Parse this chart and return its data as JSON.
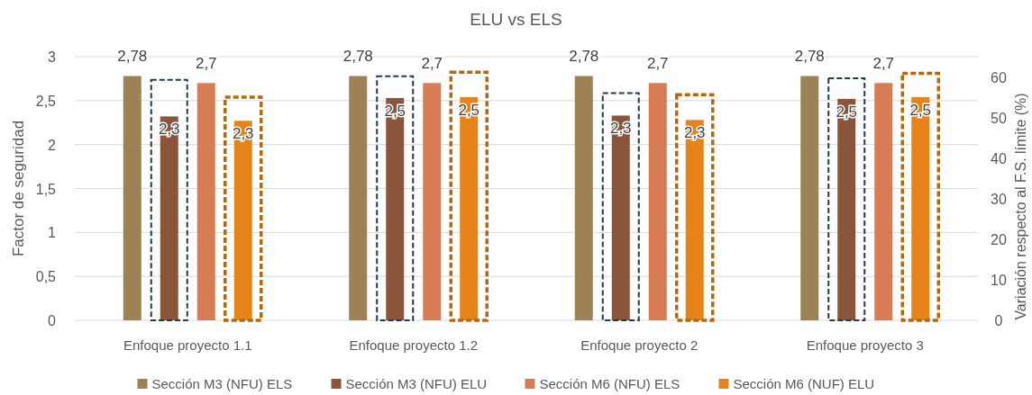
{
  "chart_data": {
    "type": "bar",
    "title": "ELU vs ELS",
    "ylabel": "Factor de seguridad",
    "y2label": "Variación respecto al F.S. límite (%)",
    "categories": [
      "Enfoque proyecto 1.1",
      "Enfoque proyecto 1.2",
      "Enfoque proyecto 2",
      "Enfoque proyecto 3"
    ],
    "series": [
      {
        "name": "Sección M3 (NFU) ELS",
        "color": "#9c8255",
        "values": [
          2.78,
          2.78,
          2.78,
          2.78
        ],
        "value_labels": [
          "2,78",
          "2,78",
          "2,78",
          "2,78"
        ]
      },
      {
        "name": "Sección M3 (NFU) ELU",
        "color": "#8b553c",
        "values": [
          2.32,
          2.53,
          2.33,
          2.52
        ],
        "value_labels": [
          "2,3",
          "2,5",
          "2,3",
          "2,5"
        ]
      },
      {
        "name": "Sección M6 (NFU) ELS",
        "color": "#d87c56",
        "values": [
          2.7,
          2.7,
          2.7,
          2.7
        ],
        "value_labels": [
          "2,7",
          "2,7",
          "2,7",
          "2,7"
        ]
      },
      {
        "name": "Sección M6 (NUF) ELU",
        "color": "#e6841a",
        "values": [
          2.27,
          2.54,
          2.28,
          2.54
        ],
        "value_labels": [
          "2,3",
          "2,5",
          "2,3",
          "2,5"
        ]
      },
      {
        "type": "bar",
        "axis": "y2",
        "line_style": "dashed",
        "color": "#203a52",
        "values": [
          59.3,
          60.2,
          56,
          59.7
        ]
      },
      {
        "type": "bar",
        "axis": "y2",
        "line_style": "dashed",
        "color": "#b5690f",
        "values": [
          55,
          61.2,
          55.6,
          60.9
        ]
      }
    ],
    "ylim": [
      0,
      3
    ],
    "yticks": [
      0,
      {
        "value": 0.5,
        "label": "0,5"
      },
      1,
      {
        "value": 1.5,
        "label": "1,5"
      },
      2,
      {
        "value": 2.5,
        "label": "2,5"
      },
      3
    ],
    "y2lim": [
      0,
      65
    ],
    "y2ticks": [
      0,
      10,
      20,
      30,
      40,
      50,
      60
    ],
    "grid": "y",
    "legend": "bottom"
  }
}
